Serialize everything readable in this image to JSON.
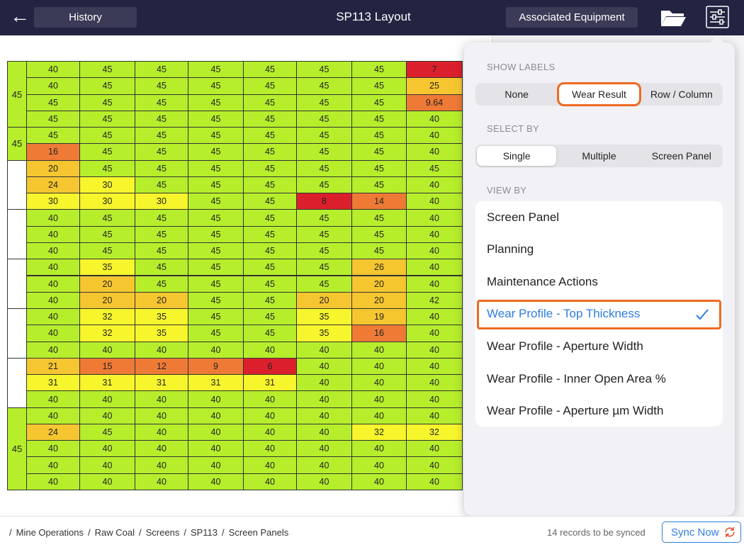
{
  "header": {
    "back": "←",
    "history": "History",
    "title": "SP113 Layout",
    "associated_equipment": "Associated Equipment"
  },
  "table": {
    "groups": [
      {
        "label": "45",
        "rows": [
          [
            40,
            45,
            45,
            45,
            45,
            45,
            45,
            7
          ],
          [
            40,
            45,
            45,
            45,
            45,
            45,
            45,
            25
          ],
          [
            45,
            45,
            45,
            45,
            45,
            45,
            45,
            9.64
          ],
          [
            45,
            45,
            45,
            45,
            45,
            45,
            45,
            40
          ]
        ]
      },
      {
        "label": "45",
        "rows": [
          [
            45,
            45,
            45,
            45,
            45,
            45,
            45,
            40
          ],
          [
            16,
            45,
            45,
            45,
            45,
            45,
            45,
            40
          ]
        ]
      },
      {
        "rows": [
          [
            20,
            45,
            45,
            45,
            45,
            45,
            45,
            45
          ],
          [
            24,
            30,
            45,
            45,
            45,
            45,
            45,
            40
          ],
          [
            30,
            30,
            30,
            45,
            45,
            8,
            14,
            40
          ]
        ]
      },
      {
        "rows": [
          [
            40,
            45,
            45,
            45,
            45,
            45,
            45,
            40
          ],
          [
            40,
            45,
            45,
            45,
            45,
            45,
            45,
            40
          ],
          [
            40,
            45,
            45,
            45,
            45,
            45,
            45,
            40
          ]
        ]
      },
      {
        "rows": [
          [
            40,
            35,
            45,
            45,
            45,
            45,
            26,
            40
          ],
          [
            40,
            20,
            45,
            45,
            45,
            45,
            20,
            40
          ],
          [
            40,
            20,
            20,
            45,
            45,
            20,
            20,
            42
          ]
        ]
      },
      {
        "rows": [
          [
            40,
            32,
            35,
            45,
            45,
            35,
            19,
            40
          ],
          [
            40,
            32,
            35,
            45,
            45,
            35,
            16,
            40
          ],
          [
            40,
            40,
            40,
            40,
            40,
            40,
            40,
            40
          ]
        ]
      },
      {
        "rows": [
          [
            21,
            15,
            12,
            9,
            6,
            40,
            40,
            40
          ],
          [
            31,
            31,
            31,
            31,
            31,
            40,
            40,
            40
          ],
          [
            40,
            40,
            40,
            40,
            40,
            40,
            40,
            40
          ]
        ]
      },
      {
        "label": "45",
        "rows": [
          [
            40,
            40,
            40,
            40,
            40,
            40,
            40,
            40
          ],
          [
            24,
            45,
            40,
            40,
            40,
            40,
            32,
            32
          ],
          [
            40,
            40,
            40,
            40,
            40,
            40,
            40,
            40
          ],
          [
            40,
            40,
            40,
            40,
            40,
            40,
            40,
            40
          ],
          [
            40,
            40,
            40,
            40,
            40,
            40,
            40,
            40
          ]
        ]
      }
    ]
  },
  "popover": {
    "show_labels": {
      "heading": "SHOW LABELS",
      "options": [
        "None",
        "Wear Result",
        "Row / Column"
      ],
      "selected": 1
    },
    "select_by": {
      "heading": "SELECT BY",
      "options": [
        "Single",
        "Multiple",
        "Screen Panel"
      ],
      "selected": 0
    },
    "view_by": {
      "heading": "VIEW BY",
      "options": [
        "Screen Panel",
        "Planning",
        "Maintenance Actions",
        "Wear Profile - Top Thickness",
        "Wear Profile - Aperture Width",
        "Wear Profile - Inner Open Area %",
        "Wear Profile - Aperture µm Width"
      ],
      "selected": 3
    }
  },
  "footer": {
    "breadcrumb": [
      "Mine Operations",
      "Raw Coal",
      "Screens",
      "SP113",
      "Screen Panels"
    ],
    "sync_status": "14 records to be synced",
    "sync_button": "Sync Now"
  }
}
